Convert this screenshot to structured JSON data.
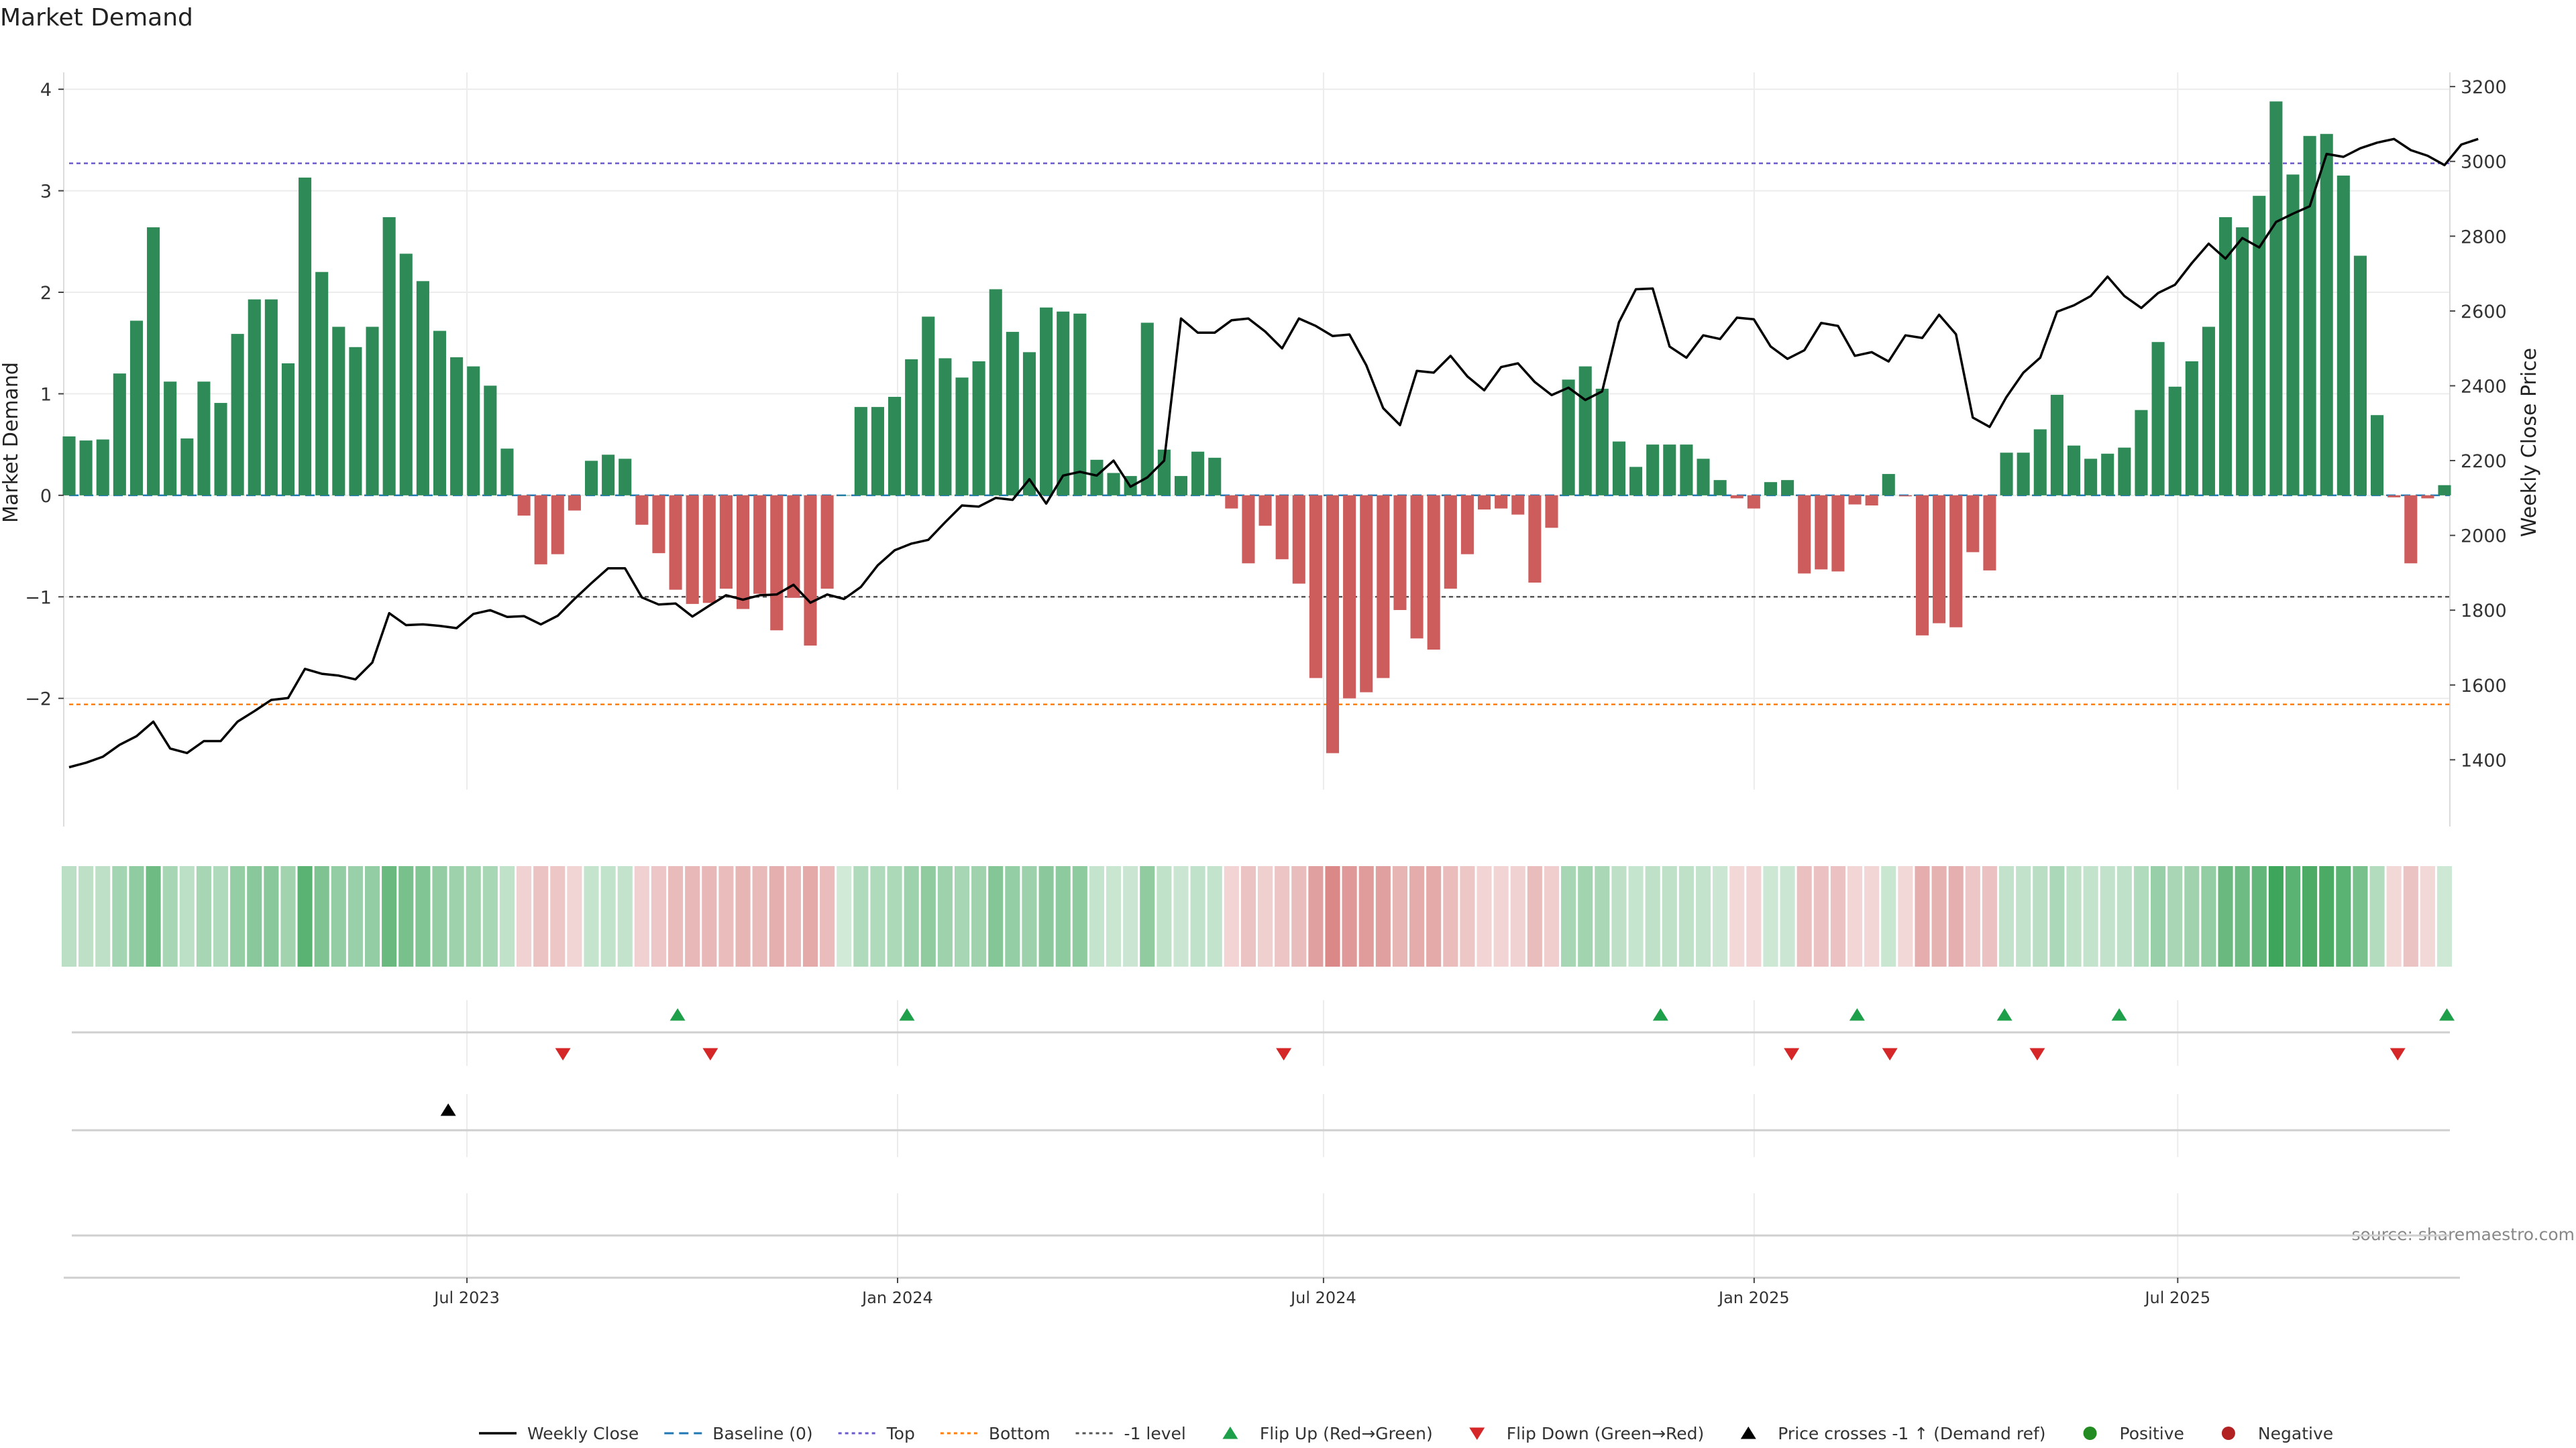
{
  "chart_data": {
    "type": "bar",
    "title": "Market Demand",
    "ylabel": "Market Demand",
    "y2label": "Weekly Close Price",
    "source": "source: sharemaestro.com",
    "ylim": [
      -2.9,
      4.1
    ],
    "y2lim": [
      1320,
      3220
    ],
    "yticks": [
      -2,
      -1,
      0,
      1,
      2,
      3,
      4
    ],
    "ytick_labels": [
      "−2",
      "−1",
      "0",
      "1",
      "2",
      "3",
      "4"
    ],
    "y2ticks": [
      1400,
      1600,
      1800,
      2000,
      2200,
      2400,
      2600,
      2800,
      3000,
      3200
    ],
    "x_dates": [
      "2023-01-12",
      "2025-10-23"
    ],
    "x_ticks": [
      {
        "date": "2023-07-01",
        "label": "Jul 2023"
      },
      {
        "date": "2024-01-01",
        "label": "Jan 2024"
      },
      {
        "date": "2024-07-01",
        "label": "Jul 2024"
      },
      {
        "date": "2025-01-01",
        "label": "Jan 2025"
      },
      {
        "date": "2025-07-01",
        "label": "Jul 2025"
      }
    ],
    "reference_lines": {
      "top": 3.27,
      "bottom": -2.06,
      "minus_one": -1.0,
      "baseline": 0
    },
    "demand": [
      0.58,
      0.54,
      0.55,
      1.2,
      1.72,
      2.64,
      1.12,
      0.56,
      1.12,
      0.91,
      1.59,
      1.93,
      1.93,
      1.3,
      3.13,
      2.2,
      1.66,
      1.46,
      1.66,
      2.74,
      2.38,
      2.11,
      1.62,
      1.36,
      1.27,
      1.08,
      0.46,
      -0.2,
      -0.68,
      -0.58,
      -0.15,
      0.34,
      0.4,
      0.36,
      -0.29,
      -0.57,
      -0.93,
      -1.07,
      -1.06,
      -0.92,
      -1.12,
      -0.97,
      -1.33,
      -1.01,
      -1.48,
      -0.92,
      0.0,
      0.87,
      0.87,
      0.97,
      1.34,
      1.76,
      1.35,
      1.16,
      1.32,
      2.03,
      1.61,
      1.41,
      1.85,
      1.81,
      1.79,
      0.35,
      0.22,
      0.19,
      1.7,
      0.45,
      0.19,
      0.43,
      0.37,
      -0.13,
      -0.67,
      -0.3,
      -0.63,
      -0.87,
      -1.8,
      -2.54,
      -2.0,
      -1.94,
      -1.8,
      -1.13,
      -1.41,
      -1.52,
      -0.92,
      -0.58,
      -0.14,
      -0.13,
      -0.19,
      -0.86,
      -0.32,
      1.14,
      1.27,
      1.05,
      0.53,
      0.28,
      0.5,
      0.5,
      0.5,
      0.36,
      0.15,
      -0.03,
      -0.13,
      0.13,
      0.15,
      -0.77,
      -0.73,
      -0.75,
      -0.09,
      -0.1,
      0.21,
      -0.01,
      -1.38,
      -1.26,
      -1.3,
      -0.56,
      -0.74,
      0.42,
      0.42,
      0.65,
      0.99,
      0.49,
      0.36,
      0.41,
      0.47,
      0.84,
      1.51,
      1.07,
      1.32,
      1.66,
      2.74,
      2.64,
      2.95,
      3.88,
      3.16,
      3.54,
      3.56,
      3.15,
      2.36,
      0.79,
      -0.02,
      -0.67,
      -0.03,
      0.1
    ],
    "weekly_close": [
      1380,
      1392,
      1408,
      1440,
      1463,
      1502,
      1430,
      1418,
      1450,
      1450,
      1502,
      1530,
      1560,
      1565,
      1643,
      1630,
      1625,
      1615,
      1660,
      1792,
      1760,
      1762,
      1758,
      1752,
      1790,
      1800,
      1782,
      1784,
      1762,
      1785,
      1830,
      1872,
      1912,
      1912,
      1834,
      1815,
      1818,
      1783,
      1812,
      1840,
      1828,
      1840,
      1842,
      1868,
      1820,
      1842,
      1830,
      1862,
      1920,
      1960,
      1978,
      1988,
      2035,
      2080,
      2077,
      2100,
      2095,
      2150,
      2085,
      2160,
      2170,
      2160,
      2200,
      2130,
      2155,
      2200,
      2580,
      2542,
      2542,
      2575,
      2580,
      2545,
      2500,
      2580,
      2560,
      2533,
      2537,
      2455,
      2340,
      2295,
      2440,
      2435,
      2480,
      2425,
      2388,
      2450,
      2460,
      2410,
      2375,
      2395,
      2362,
      2385,
      2570,
      2658,
      2660,
      2505,
      2475,
      2535,
      2525,
      2582,
      2578,
      2505,
      2472,
      2495,
      2568,
      2560,
      2480,
      2490,
      2465,
      2535,
      2528,
      2590,
      2538,
      2315,
      2290,
      2370,
      2435,
      2475,
      2598,
      2615,
      2640,
      2692,
      2640,
      2608,
      2648,
      2670,
      2728,
      2780,
      2740,
      2795,
      2770,
      2838,
      2860,
      2880,
      3020,
      3012,
      3035,
      3050,
      3060,
      3030,
      3015,
      2990,
      3045,
      3060
    ],
    "heat_scale": {
      "positive": "#2e9e4d",
      "negative": "#c85050"
    },
    "flip_up_dates": [
      "2023-09-29",
      "2024-01-05",
      "2024-11-22",
      "2025-02-14",
      "2025-04-18",
      "2025-06-06",
      "2025-10-24"
    ],
    "flip_down_dates": [
      "2023-08-11",
      "2023-10-13",
      "2024-06-14",
      "2025-01-17",
      "2025-02-28",
      "2025-05-02",
      "2025-10-03"
    ],
    "price_cross_dates": [
      "2023-06-23"
    ],
    "legend": [
      {
        "label": "Weekly Close",
        "kind": "line",
        "color": "#000000"
      },
      {
        "label": "Baseline (0)",
        "kind": "dash",
        "color": "#1f77b4"
      },
      {
        "label": "Top",
        "kind": "dot",
        "color": "#6a5acd"
      },
      {
        "label": "Bottom",
        "kind": "dot",
        "color": "#ff7f0e"
      },
      {
        "label": "-1 level",
        "kind": "dot",
        "color": "#555555"
      },
      {
        "label": "Flip Up (Red→Green)",
        "kind": "tri-up",
        "color": "#1ea04a"
      },
      {
        "label": "Flip Down (Green→Red)",
        "kind": "tri-down",
        "color": "#d62728"
      },
      {
        "label": "Price crosses -1 ↑ (Demand ref)",
        "kind": "tri-up",
        "color": "#000000"
      },
      {
        "label": "Positive",
        "kind": "dot-marker",
        "color": "#228b22"
      },
      {
        "label": "Negative",
        "kind": "dot-marker",
        "color": "#b22222"
      }
    ],
    "colors": {
      "bar_positive": "#2e8b57",
      "bar_negative": "#cd5c5c",
      "price": "#000000"
    }
  }
}
